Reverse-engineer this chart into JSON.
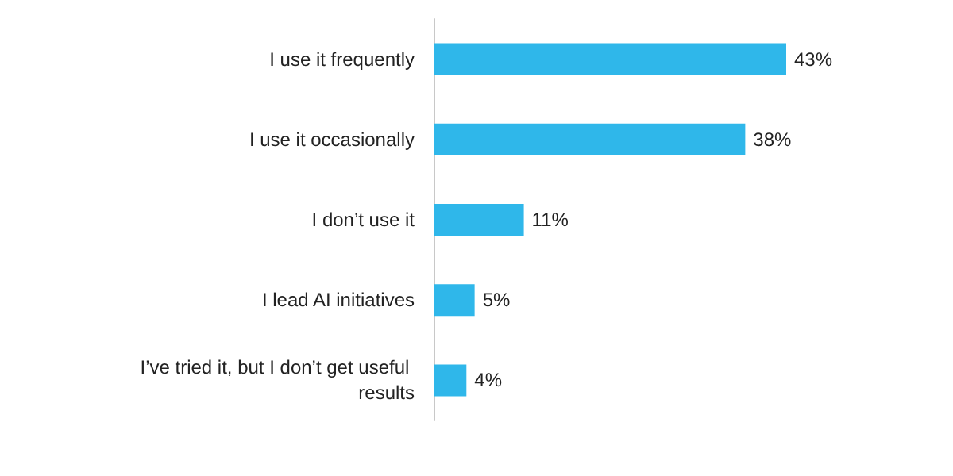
{
  "chart_data": {
    "type": "bar",
    "orientation": "horizontal",
    "categories": [
      "I use it frequently",
      "I use it occasionally",
      "I don’t use it",
      "I lead AI initiatives",
      "I’ve tried it, but I don’t get useful results"
    ],
    "values": [
      43,
      38,
      11,
      5,
      4
    ],
    "value_labels": [
      "43%",
      "38%",
      "11%",
      "5%",
      "4%"
    ],
    "color": "#2fb7ea"
  }
}
